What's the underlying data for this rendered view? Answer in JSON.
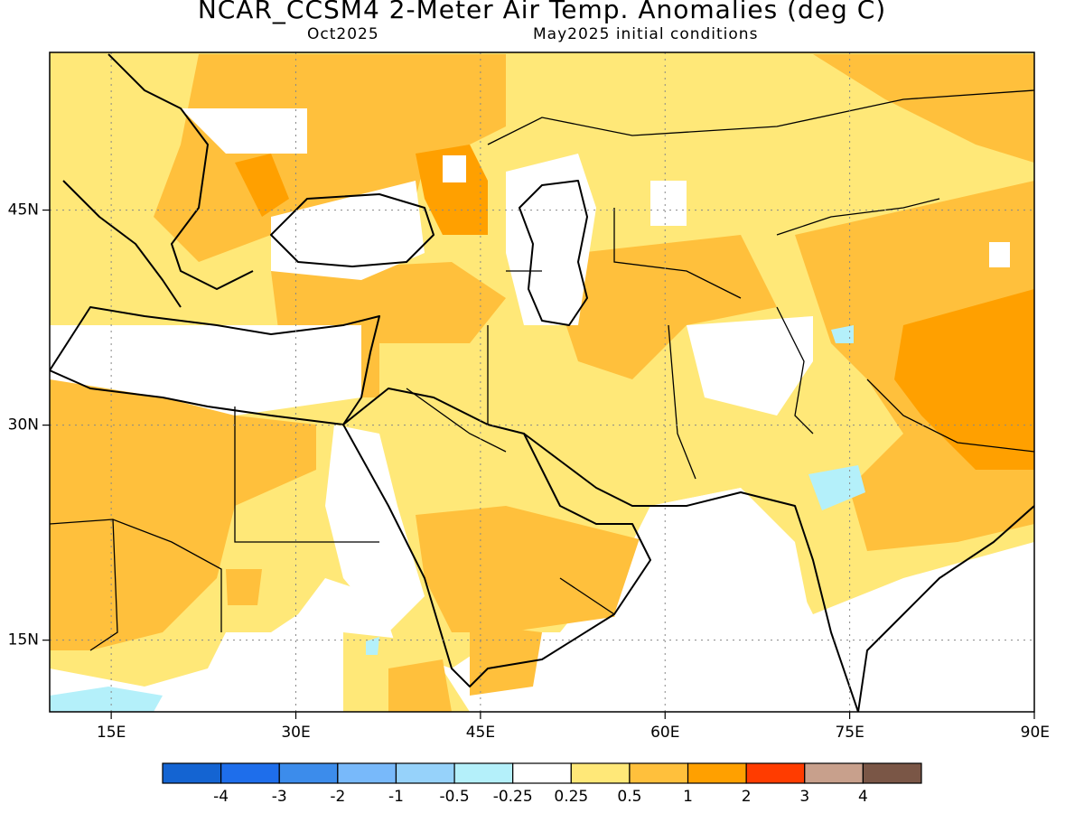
{
  "title": "NCAR_CCSM4 2-Meter Air Temp. Anomalies (deg C)",
  "subtitle_left": "Oct2025",
  "subtitle_right": "May2025 initial conditions",
  "map": {
    "lon_range": [
      10,
      90
    ],
    "lat_range": [
      10,
      56
    ],
    "lon_ticks": [
      {
        "value": 15,
        "label": "15E"
      },
      {
        "value": 30,
        "label": "30E"
      },
      {
        "value": 45,
        "label": "45E"
      },
      {
        "value": 60,
        "label": "60E"
      },
      {
        "value": 75,
        "label": "75E"
      },
      {
        "value": 90,
        "label": "90E"
      }
    ],
    "lat_ticks": [
      {
        "value": 45,
        "label": "45N"
      },
      {
        "value": 30,
        "label": "30N"
      },
      {
        "value": 15,
        "label": "15N"
      }
    ],
    "gridlines": "dotted"
  },
  "colorbar": {
    "colors": [
      "#1464d2",
      "#1e6eeb",
      "#3c8ceb",
      "#78b9fa",
      "#96d2fa",
      "#b4f0fa",
      "#ffffff",
      "#ffe878",
      "#ffc03c",
      "#ffa000",
      "#ff3c00",
      "#c8a08c",
      "#7a5646"
    ],
    "labels": [
      "-4",
      "-3",
      "-2",
      "-1",
      "-0.5",
      "-0.25",
      "0.25",
      "0.5",
      "1",
      "2",
      "3",
      "4"
    ]
  }
}
